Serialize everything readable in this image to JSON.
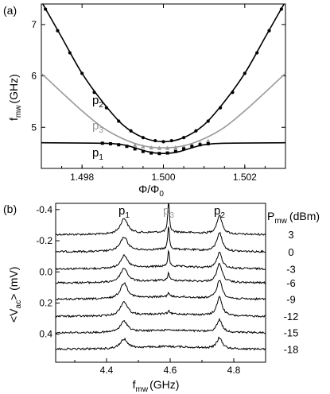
{
  "chart_data": [
    {
      "panel": "(a)",
      "type": "line",
      "xlabel": "Φ/Φ",
      "xlabel_sub": "0",
      "ylabel": "f",
      "ylabel_sub": "mw",
      "ylabel_unit": "(GHz)",
      "xlim": [
        1.497,
        1.503
      ],
      "ylim": [
        4.2,
        7.4
      ],
      "xticks": [
        1.498,
        1.5,
        1.502
      ],
      "xtick_labels": [
        "1.498",
        "1.500",
        "1.502"
      ],
      "yticks": [
        5,
        6,
        7
      ],
      "ytick_labels": [
        "5",
        "6",
        "7"
      ],
      "series": [
        {
          "name": "p",
          "sub": "2",
          "color": "#000000",
          "curve": {
            "x": [
              1.497,
              1.4975,
              1.498,
              1.4985,
              1.499,
              1.4995,
              1.5,
              1.5005,
              1.501,
              1.5015,
              1.502,
              1.5025,
              1.503
            ],
            "y": [
              7.45,
              6.75,
              6.05,
              5.5,
              5.05,
              4.8,
              4.72,
              4.8,
              5.05,
              5.5,
              6.05,
              6.75,
              7.45
            ]
          },
          "points": {
            "x": [
              1.4971,
              1.4974,
              1.4977,
              1.498,
              1.4983,
              1.4986,
              1.4989,
              1.4992,
              1.4995,
              1.4998,
              1.5,
              1.5002,
              1.5005,
              1.5008,
              1.5011,
              1.5014,
              1.5017,
              1.502,
              1.5023,
              1.5026,
              1.5029
            ],
            "y": [
              7.3,
              6.88,
              6.45,
              6.05,
              5.68,
              5.38,
              5.12,
              4.93,
              4.8,
              4.74,
              4.72,
              4.74,
              4.8,
              4.93,
              5.12,
              5.38,
              5.68,
              6.05,
              6.45,
              6.88,
              7.3
            ]
          }
        },
        {
          "name": "p",
          "sub": "3",
          "color": "#999999",
          "curve": {
            "x": [
              1.497,
              1.4975,
              1.498,
              1.4985,
              1.499,
              1.4995,
              1.5,
              1.5005,
              1.501,
              1.5015,
              1.502,
              1.5025,
              1.503
            ],
            "y": [
              6.05,
              5.68,
              5.32,
              5.0,
              4.78,
              4.64,
              4.6,
              4.64,
              4.78,
              5.0,
              5.32,
              5.68,
              6.05
            ]
          },
          "points": {
            "x": [
              1.4993,
              1.4995,
              1.4997,
              1.4999,
              1.5001,
              1.5003,
              1.5005,
              1.5007,
              1.5009,
              1.5011
            ],
            "y": [
              4.66,
              4.63,
              4.61,
              4.6,
              4.6,
              4.61,
              4.63,
              4.66,
              4.7,
              4.74
            ]
          }
        },
        {
          "name": "p",
          "sub": "1",
          "color": "#000000",
          "curve": {
            "x": [
              1.497,
              1.4985,
              1.499,
              1.4993,
              1.4996,
              1.4998,
              1.5,
              1.5002,
              1.5004,
              1.5007,
              1.501,
              1.5015,
              1.503
            ],
            "y": [
              4.7,
              4.69,
              4.66,
              4.6,
              4.53,
              4.5,
              4.49,
              4.5,
              4.53,
              4.6,
              4.66,
              4.69,
              4.7
            ]
          },
          "points": {
            "x": [
              1.4985,
              1.4987,
              1.4989,
              1.4991,
              1.4993,
              1.4995,
              1.4997,
              1.4999,
              1.5001,
              1.5003,
              1.5005,
              1.5007,
              1.5009,
              1.5011
            ],
            "y": [
              4.69,
              4.68,
              4.66,
              4.63,
              4.58,
              4.53,
              4.5,
              4.49,
              4.5,
              4.53,
              4.58,
              4.63,
              4.66,
              4.68
            ]
          }
        }
      ]
    },
    {
      "panel": "(b)",
      "type": "line",
      "xlabel": "f",
      "xlabel_sub": "mw",
      "xlabel_unit": "(GHz)",
      "ylabel": "<V",
      "ylabel_sub": "ac",
      "ylabel_unit": "> (mV)",
      "xlim": [
        4.24,
        4.9
      ],
      "ylim": [
        0.58,
        -0.44
      ],
      "xticks": [
        4.4,
        4.6,
        4.8
      ],
      "xtick_labels": [
        "4.4",
        "4.6",
        "4.8"
      ],
      "yticks": [
        -0.4,
        -0.2,
        0.0,
        0.2,
        0.4
      ],
      "ytick_labels": [
        "-0.4",
        "-0.2",
        "0.0",
        "0.2",
        "0.4"
      ],
      "peak_labels": [
        {
          "name": "p",
          "sub": "1",
          "x": 4.455,
          "color": "#000000"
        },
        {
          "name": "p",
          "sub": "3",
          "x": 4.595,
          "color": "#999999"
        },
        {
          "name": "p",
          "sub": "2",
          "x": 4.755,
          "color": "#000000"
        }
      ],
      "legend_title": "P",
      "legend_title_sub": "mw",
      "legend_title_unit": "(dBm)",
      "powers": [
        "3",
        "0",
        "-3",
        "-6",
        "-9",
        "-12",
        "-15",
        "-18"
      ],
      "series": [
        {
          "power": "3",
          "baseline": -0.24,
          "p1": 0.1,
          "p3": 0.2,
          "p2": 0.12
        },
        {
          "power": "0",
          "baseline": -0.13,
          "p1": 0.09,
          "p3": 0.15,
          "p2": 0.12
        },
        {
          "power": "-3",
          "baseline": -0.02,
          "p1": 0.08,
          "p3": 0.1,
          "p2": 0.1
        },
        {
          "power": "-6",
          "baseline": 0.07,
          "p1": 0.09,
          "p3": 0.05,
          "p2": 0.12
        },
        {
          "power": "-9",
          "baseline": 0.175,
          "p1": 0.1,
          "p3": 0.03,
          "p2": 0.12
        },
        {
          "power": "-12",
          "baseline": 0.285,
          "p1": 0.09,
          "p3": 0.02,
          "p2": 0.12
        },
        {
          "power": "-15",
          "baseline": 0.39,
          "p1": 0.07,
          "p3": 0.01,
          "p2": 0.08
        },
        {
          "power": "-18",
          "baseline": 0.495,
          "p1": 0.06,
          "p3": 0.0,
          "p2": 0.07
        }
      ]
    }
  ]
}
